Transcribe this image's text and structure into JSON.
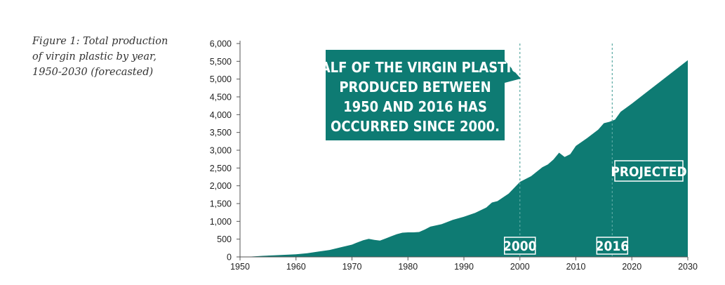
{
  "caption": {
    "line1": "Figure 1: Total production",
    "line2": "of virgin plastic by year,",
    "line3": "1950-2030 (forecasted)"
  },
  "colors": {
    "area": "#0e7b73",
    "text_on_dark": "#ffffff"
  },
  "callout": {
    "lines": [
      "HALF OF THE VIRGIN PLASTIC",
      "PRODUCED BETWEEN",
      "1950 AND 2016 HAS",
      "OCCURRED SINCE 2000."
    ]
  },
  "markers": [
    {
      "x": 2000,
      "label": "2000"
    },
    {
      "x": 2016.5,
      "label": "2016"
    }
  ],
  "projected_label": "PROJECTED",
  "chart_data": {
    "type": "area",
    "title": "",
    "xlabel": "",
    "ylabel": "",
    "xlim": [
      1950,
      2030
    ],
    "ylim": [
      0,
      6000
    ],
    "xticks": [
      1950,
      1960,
      1970,
      1980,
      1990,
      2000,
      2010,
      2020,
      2030
    ],
    "yticks": [
      0,
      500,
      1000,
      1500,
      2000,
      2500,
      3000,
      3500,
      4000,
      4500,
      5000,
      5500,
      6000
    ],
    "ytick_labels": [
      "0",
      "500",
      "1,000",
      "1,500",
      "2,000",
      "2,500",
      "3,000",
      "3,500",
      "4,000",
      "4,500",
      "5,000",
      "5,500",
      "6,000"
    ],
    "grid": false,
    "series": [
      {
        "points": [
          [
            1950,
            0
          ],
          [
            1952,
            10
          ],
          [
            1954,
            30
          ],
          [
            1956,
            45
          ],
          [
            1958,
            60
          ],
          [
            1960,
            75
          ],
          [
            1962,
            105
          ],
          [
            1964,
            150
          ],
          [
            1966,
            195
          ],
          [
            1968,
            270
          ],
          [
            1970,
            345
          ],
          [
            1971,
            410
          ],
          [
            1972,
            470
          ],
          [
            1973,
            510
          ],
          [
            1974,
            480
          ],
          [
            1975,
            460
          ],
          [
            1976,
            520
          ],
          [
            1977,
            580
          ],
          [
            1978,
            640
          ],
          [
            1979,
            680
          ],
          [
            1980,
            690
          ],
          [
            1981,
            690
          ],
          [
            1982,
            700
          ],
          [
            1983,
            770
          ],
          [
            1984,
            850
          ],
          [
            1986,
            920
          ],
          [
            1988,
            1040
          ],
          [
            1990,
            1130
          ],
          [
            1992,
            1240
          ],
          [
            1994,
            1390
          ],
          [
            1995,
            1530
          ],
          [
            1996,
            1570
          ],
          [
            1998,
            1780
          ],
          [
            2000,
            2110
          ],
          [
            2002,
            2270
          ],
          [
            2004,
            2520
          ],
          [
            2005,
            2600
          ],
          [
            2006,
            2740
          ],
          [
            2007,
            2930
          ],
          [
            2008,
            2810
          ],
          [
            2009,
            2890
          ],
          [
            2010,
            3120
          ],
          [
            2012,
            3340
          ],
          [
            2014,
            3580
          ],
          [
            2015,
            3760
          ],
          [
            2016,
            3800
          ],
          [
            2017,
            3860
          ],
          [
            2018,
            4080
          ],
          [
            2020,
            4310
          ],
          [
            2025,
            4920
          ],
          [
            2030,
            5530
          ]
        ]
      }
    ]
  }
}
